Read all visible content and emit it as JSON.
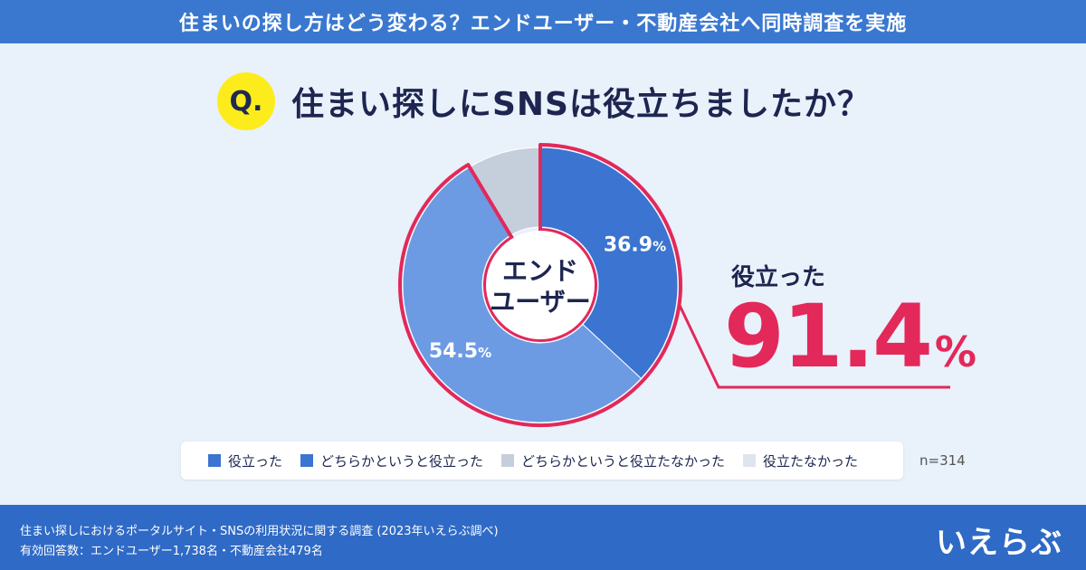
{
  "header": {
    "title": "住まいの探し方はどう変わる？エンドユーザー・不動産会社へ同時調査を実施"
  },
  "question": {
    "badge": "Q.",
    "text": "住まい探しにSNSは役立ちましたか？"
  },
  "chart_data": {
    "type": "pie",
    "center_label": [
      "エンド",
      "ユーザー"
    ],
    "categories": [
      "役立った",
      "どちらかというと役立った",
      "どちらかというと役立たなかった",
      "役立たなかった"
    ],
    "values": [
      36.9,
      54.5,
      8.6,
      0.0
    ],
    "value_labels": [
      "36.9",
      "54.5",
      "",
      ""
    ],
    "colors": [
      "#3b74d1",
      "#6c9be3",
      "#c5cfdb",
      "#dfe5ee"
    ],
    "highlight_color": "#e3285a",
    "legend_position": "bottom",
    "annotation": "n=314"
  },
  "callout": {
    "label": "役立った",
    "value": "91.4",
    "unit": "%"
  },
  "footer": {
    "line1": "住まい探しにおけるポータルサイト・SNSの利用状況に関する調査 (2023年いえらぶ調べ)",
    "line2": "有効回答数：エンドユーザー1,738名・不動産会社479名",
    "brand": "いえらぶ"
  }
}
